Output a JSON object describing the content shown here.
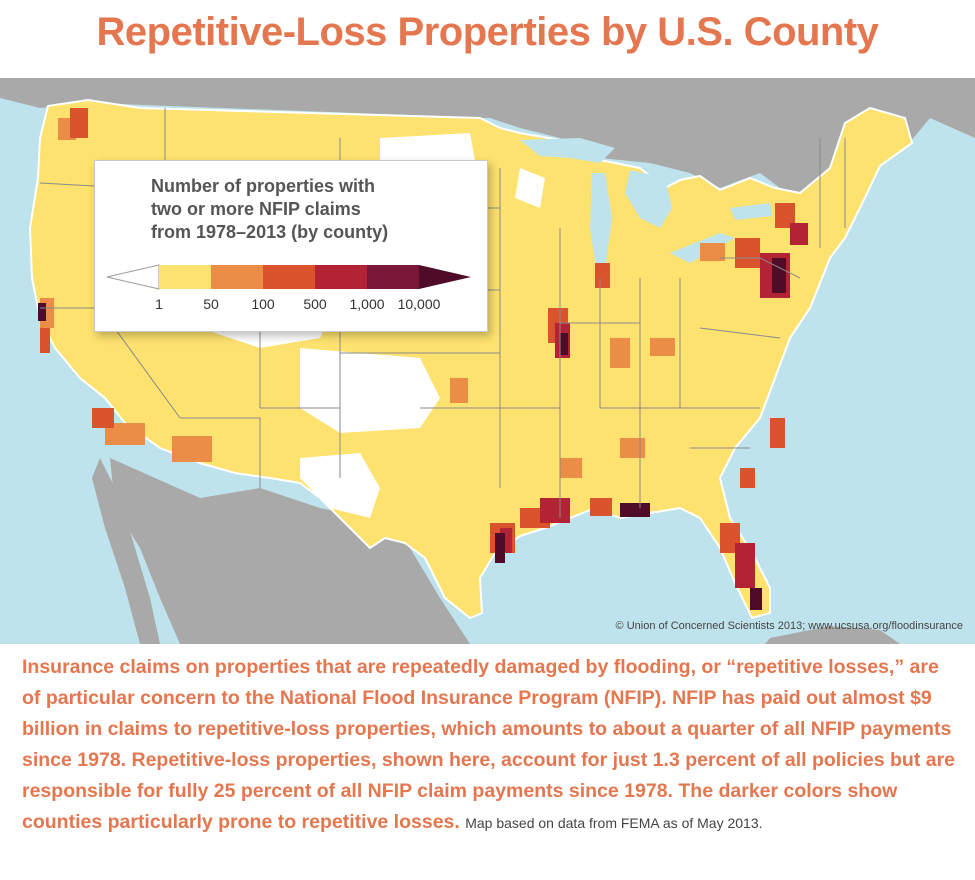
{
  "title": "Repetitive-Loss Properties by U.S. County",
  "legend": {
    "title_lines": [
      "Number of properties with",
      "two or more NFIP claims",
      "from 1978–2013 (by county)"
    ],
    "bins": [
      {
        "label": "1",
        "color": "#ffffff"
      },
      {
        "label": "50",
        "color": "#fde26f"
      },
      {
        "label": "100",
        "color": "#eb8c47"
      },
      {
        "label": "500",
        "color": "#d9532d"
      },
      {
        "label": "1,000",
        "color": "#b22435"
      },
      {
        "label": "10,000",
        "color": "#7a1738"
      }
    ],
    "max_color": "#4e0c29"
  },
  "colors": {
    "ocean": "#bfe3ec",
    "land_other": "#a8a8a8",
    "us_base": "#fde26f",
    "no_data": "#ffffff",
    "accent": "#e4774f"
  },
  "credit": "© Union of Concerned Scientists 2013; www.ucsusa.org/floodinsurance",
  "caption": "Insurance claims on properties that are repeatedly damaged by flooding, or “repetitive losses,” are of particular concern to the National Flood Insurance Program (NFIP). NFIP has paid out almost $9 billion in claims to repetitive-loss properties, which amounts to about a quarter of all NFIP payments since 1978. Repetitive-loss properties, shown here, account for just 1.3 percent of all policies but are responsible for fully 25 percent of all NFIP claim payments since 1978. The darker colors show counties particularly prone to repetitive losses.",
  "note": "Map based on data from FEMA as of May 2013."
}
